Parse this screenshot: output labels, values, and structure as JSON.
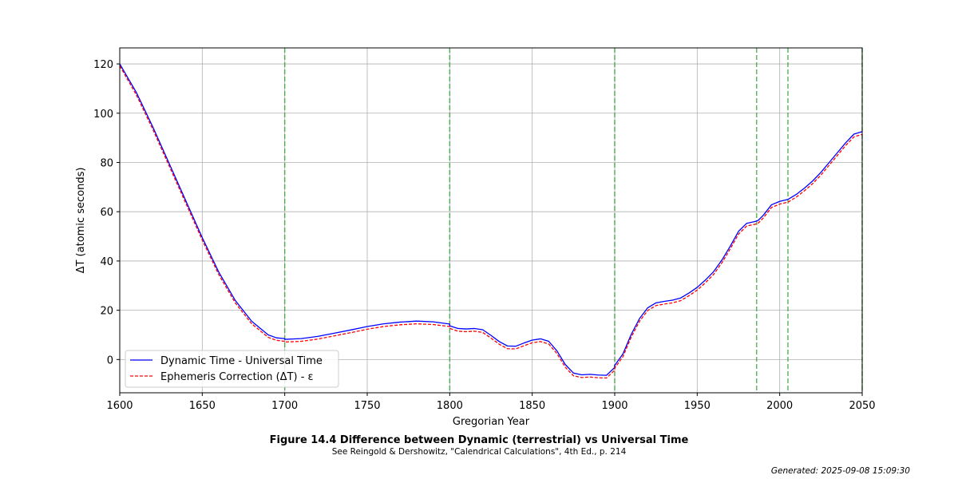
{
  "chart_data": {
    "type": "line",
    "xlabel": "Gregorian Year",
    "ylabel": "ΔT (atomic seconds)",
    "xlim": [
      1600,
      2050
    ],
    "ylim": [
      -13.5,
      126.5
    ],
    "xticks": [
      1600,
      1650,
      1700,
      1750,
      1800,
      1850,
      1900,
      1950,
      2000,
      2050
    ],
    "yticks": [
      0,
      20,
      40,
      60,
      80,
      100,
      120
    ],
    "grid": true,
    "legend_position": "lower-left",
    "vlines": [
      1700,
      1800,
      1900,
      1986,
      2005,
      2050
    ],
    "vline_color": "#2ca02c",
    "series": [
      {
        "name": "Dynamic Time - Universal Time",
        "color": "#0000ff",
        "style": "solid",
        "x": [
          1600,
          1610,
          1620,
          1630,
          1640,
          1650,
          1660,
          1670,
          1680,
          1690,
          1695,
          1699.9,
          1700,
          1710,
          1720,
          1730,
          1740,
          1750,
          1760,
          1770,
          1780,
          1790,
          1799.9,
          1800,
          1805,
          1810,
          1815,
          1820,
          1825,
          1830,
          1835,
          1840,
          1845,
          1850,
          1855,
          1860,
          1865,
          1870,
          1875,
          1880,
          1885,
          1890,
          1895,
          1899.9,
          1900,
          1905,
          1910,
          1915,
          1920,
          1925,
          1930,
          1935,
          1940,
          1945,
          1950,
          1955,
          1960,
          1965,
          1970,
          1975,
          1980,
          1985,
          1987,
          1990,
          1995,
          2000,
          2005,
          2010,
          2015,
          2020,
          2025,
          2030,
          2035,
          2040,
          2045,
          2050
        ],
        "y": [
          120,
          108.5,
          94.5,
          79.5,
          64.5,
          49.5,
          35.5,
          24,
          15.5,
          10,
          8.8,
          8.5,
          8.2,
          8.5,
          9.4,
          10.7,
          12,
          13.4,
          14.5,
          15.2,
          15.6,
          15.3,
          14.4,
          13.7,
          12.6,
          12.4,
          12.6,
          12.1,
          9.8,
          7.3,
          5.5,
          5.4,
          6.7,
          7.9,
          8.4,
          7.4,
          3.5,
          -2,
          -5.5,
          -6.2,
          -6,
          -6.3,
          -6.4,
          -3.3,
          -2.4,
          2.3,
          10.2,
          16.6,
          21,
          23,
          23.6,
          24.1,
          25,
          27,
          29.3,
          32.3,
          35.7,
          40.4,
          46,
          52,
          55.3,
          56,
          56.5,
          58.5,
          62.8,
          64.2,
          65,
          67,
          69.6,
          72.5,
          76,
          80,
          84,
          88,
          91.5,
          92.5
        ]
      },
      {
        "name": "Ephemeris Correction (ΔT) - ε",
        "color": "#ff0000",
        "style": "dashed",
        "x": [
          1600,
          1610,
          1620,
          1630,
          1640,
          1650,
          1660,
          1670,
          1680,
          1690,
          1695,
          1699.9,
          1700,
          1710,
          1720,
          1730,
          1740,
          1750,
          1760,
          1770,
          1780,
          1790,
          1799.9,
          1800,
          1805,
          1810,
          1815,
          1820,
          1825,
          1830,
          1835,
          1840,
          1845,
          1850,
          1855,
          1860,
          1865,
          1870,
          1875,
          1880,
          1885,
          1890,
          1895,
          1899.9,
          1900,
          1905,
          1910,
          1915,
          1920,
          1925,
          1930,
          1935,
          1940,
          1945,
          1950,
          1955,
          1960,
          1965,
          1970,
          1975,
          1980,
          1985,
          1987,
          1990,
          1995,
          2000,
          2005,
          2010,
          2015,
          2020,
          2025,
          2030,
          2035,
          2040,
          2045,
          2050
        ],
        "y": [
          119.2,
          107.5,
          93.5,
          78.5,
          63.5,
          48.5,
          34.5,
          23,
          14.5,
          9,
          7.8,
          7.4,
          7.1,
          7.4,
          8.3,
          9.6,
          10.9,
          12.3,
          13.4,
          14.1,
          14.5,
          14.2,
          13.4,
          12.6,
          11.5,
          11.3,
          11.5,
          11,
          8.7,
          6.2,
          4.4,
          4.3,
          5.6,
          6.8,
          7.3,
          6.3,
          2.4,
          -3.1,
          -6.6,
          -7.3,
          -7.1,
          -7.4,
          -7.5,
          -4.4,
          -3.5,
          1.2,
          9.1,
          15.5,
          19.9,
          21.9,
          22.5,
          23,
          23.9,
          25.9,
          28.2,
          31.2,
          34.6,
          39.3,
          44.9,
          50.9,
          54.2,
          54.9,
          55.4,
          57.4,
          61.7,
          63.1,
          63.9,
          65.9,
          68.5,
          71.4,
          74.9,
          78.9,
          82.9,
          86.9,
          90.4,
          91.4
        ]
      }
    ]
  },
  "caption": {
    "title": "Figure 14.4 Difference between Dynamic (terrestrial) vs Universal Time",
    "subtitle": "See Reingold & Dershowitz, \"Calendrical Calculations\", 4th Ed., p. 214"
  },
  "generated": "Generated: 2025-09-08 15:09:30"
}
